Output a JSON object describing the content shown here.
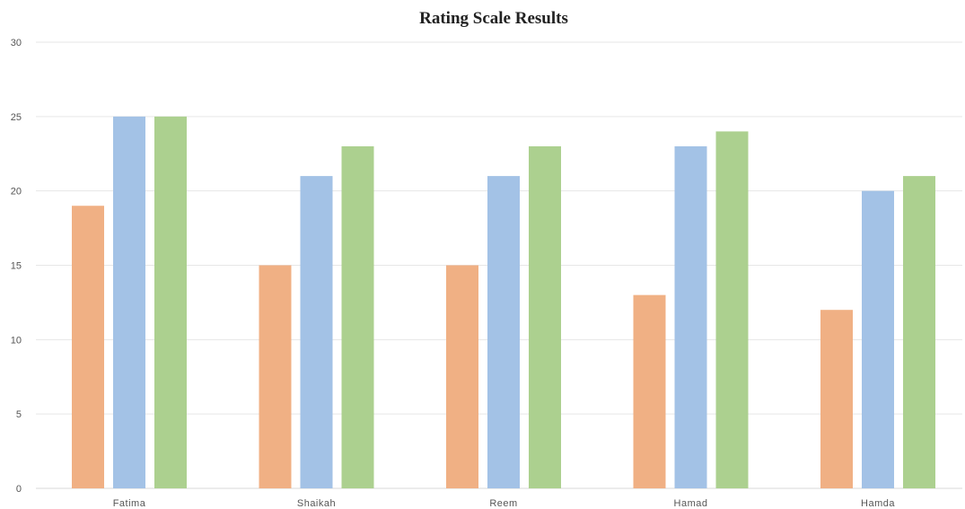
{
  "chart_data": {
    "type": "bar",
    "title": "Rating Scale Results",
    "xlabel": "",
    "ylabel": "",
    "ylim": [
      0,
      30
    ],
    "yticks": [
      0,
      5,
      10,
      15,
      20,
      25,
      30
    ],
    "grid": true,
    "legend": "none",
    "categories": [
      "Fatima",
      "Shaikah",
      "Reem",
      "Hamad",
      "Hamda"
    ],
    "series": [
      {
        "color": "#f0b084",
        "values": [
          19,
          15,
          15,
          13,
          12
        ]
      },
      {
        "color": "#a3c2e6",
        "values": [
          25,
          21,
          21,
          23,
          20
        ]
      },
      {
        "color": "#acd08f",
        "values": [
          25,
          23,
          23,
          24,
          21
        ]
      }
    ]
  }
}
